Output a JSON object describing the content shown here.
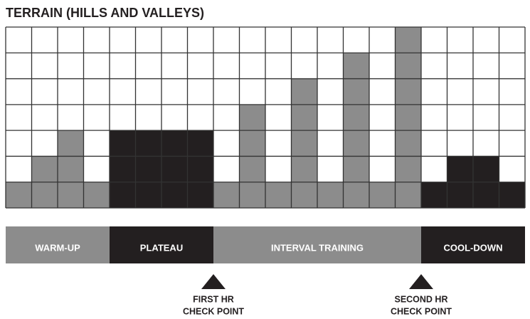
{
  "chart_data": {
    "type": "bar",
    "title": "TERRAIN (HILLS AND VALLEYS)",
    "values": [
      1,
      2,
      3,
      1,
      3,
      3,
      3,
      3,
      1,
      4,
      1,
      5,
      1,
      6,
      1,
      7,
      1,
      2,
      2,
      1
    ],
    "colors": [
      "#8c8c8c",
      "#8c8c8c",
      "#8c8c8c",
      "#8c8c8c",
      "#231f20",
      "#231f20",
      "#231f20",
      "#231f20",
      "#8c8c8c",
      "#8c8c8c",
      "#8c8c8c",
      "#8c8c8c",
      "#8c8c8c",
      "#8c8c8c",
      "#8c8c8c",
      "#8c8c8c",
      "#231f20",
      "#231f20",
      "#231f20",
      "#231f20"
    ],
    "ylim": [
      0,
      7
    ],
    "yticks": [
      0,
      1,
      2,
      3,
      4,
      5,
      6,
      7
    ],
    "grid": true,
    "phases": [
      {
        "label": "WARM-UP",
        "color": "#8c8c8c",
        "start": 0,
        "end": 4
      },
      {
        "label": "PLATEAU",
        "color": "#231f20",
        "start": 4,
        "end": 8
      },
      {
        "label": "INTERVAL TRAINING",
        "color": "#8c8c8c",
        "start": 8,
        "end": 16
      },
      {
        "label": "COOL-DOWN",
        "color": "#231f20",
        "start": 16,
        "end": 20
      }
    ],
    "checkpoints": [
      {
        "lines": [
          "FIRST HR",
          "CHECK POINT"
        ],
        "at": 8
      },
      {
        "lines": [
          "SECOND HR",
          "CHECK POINT"
        ],
        "at": 16
      }
    ]
  }
}
